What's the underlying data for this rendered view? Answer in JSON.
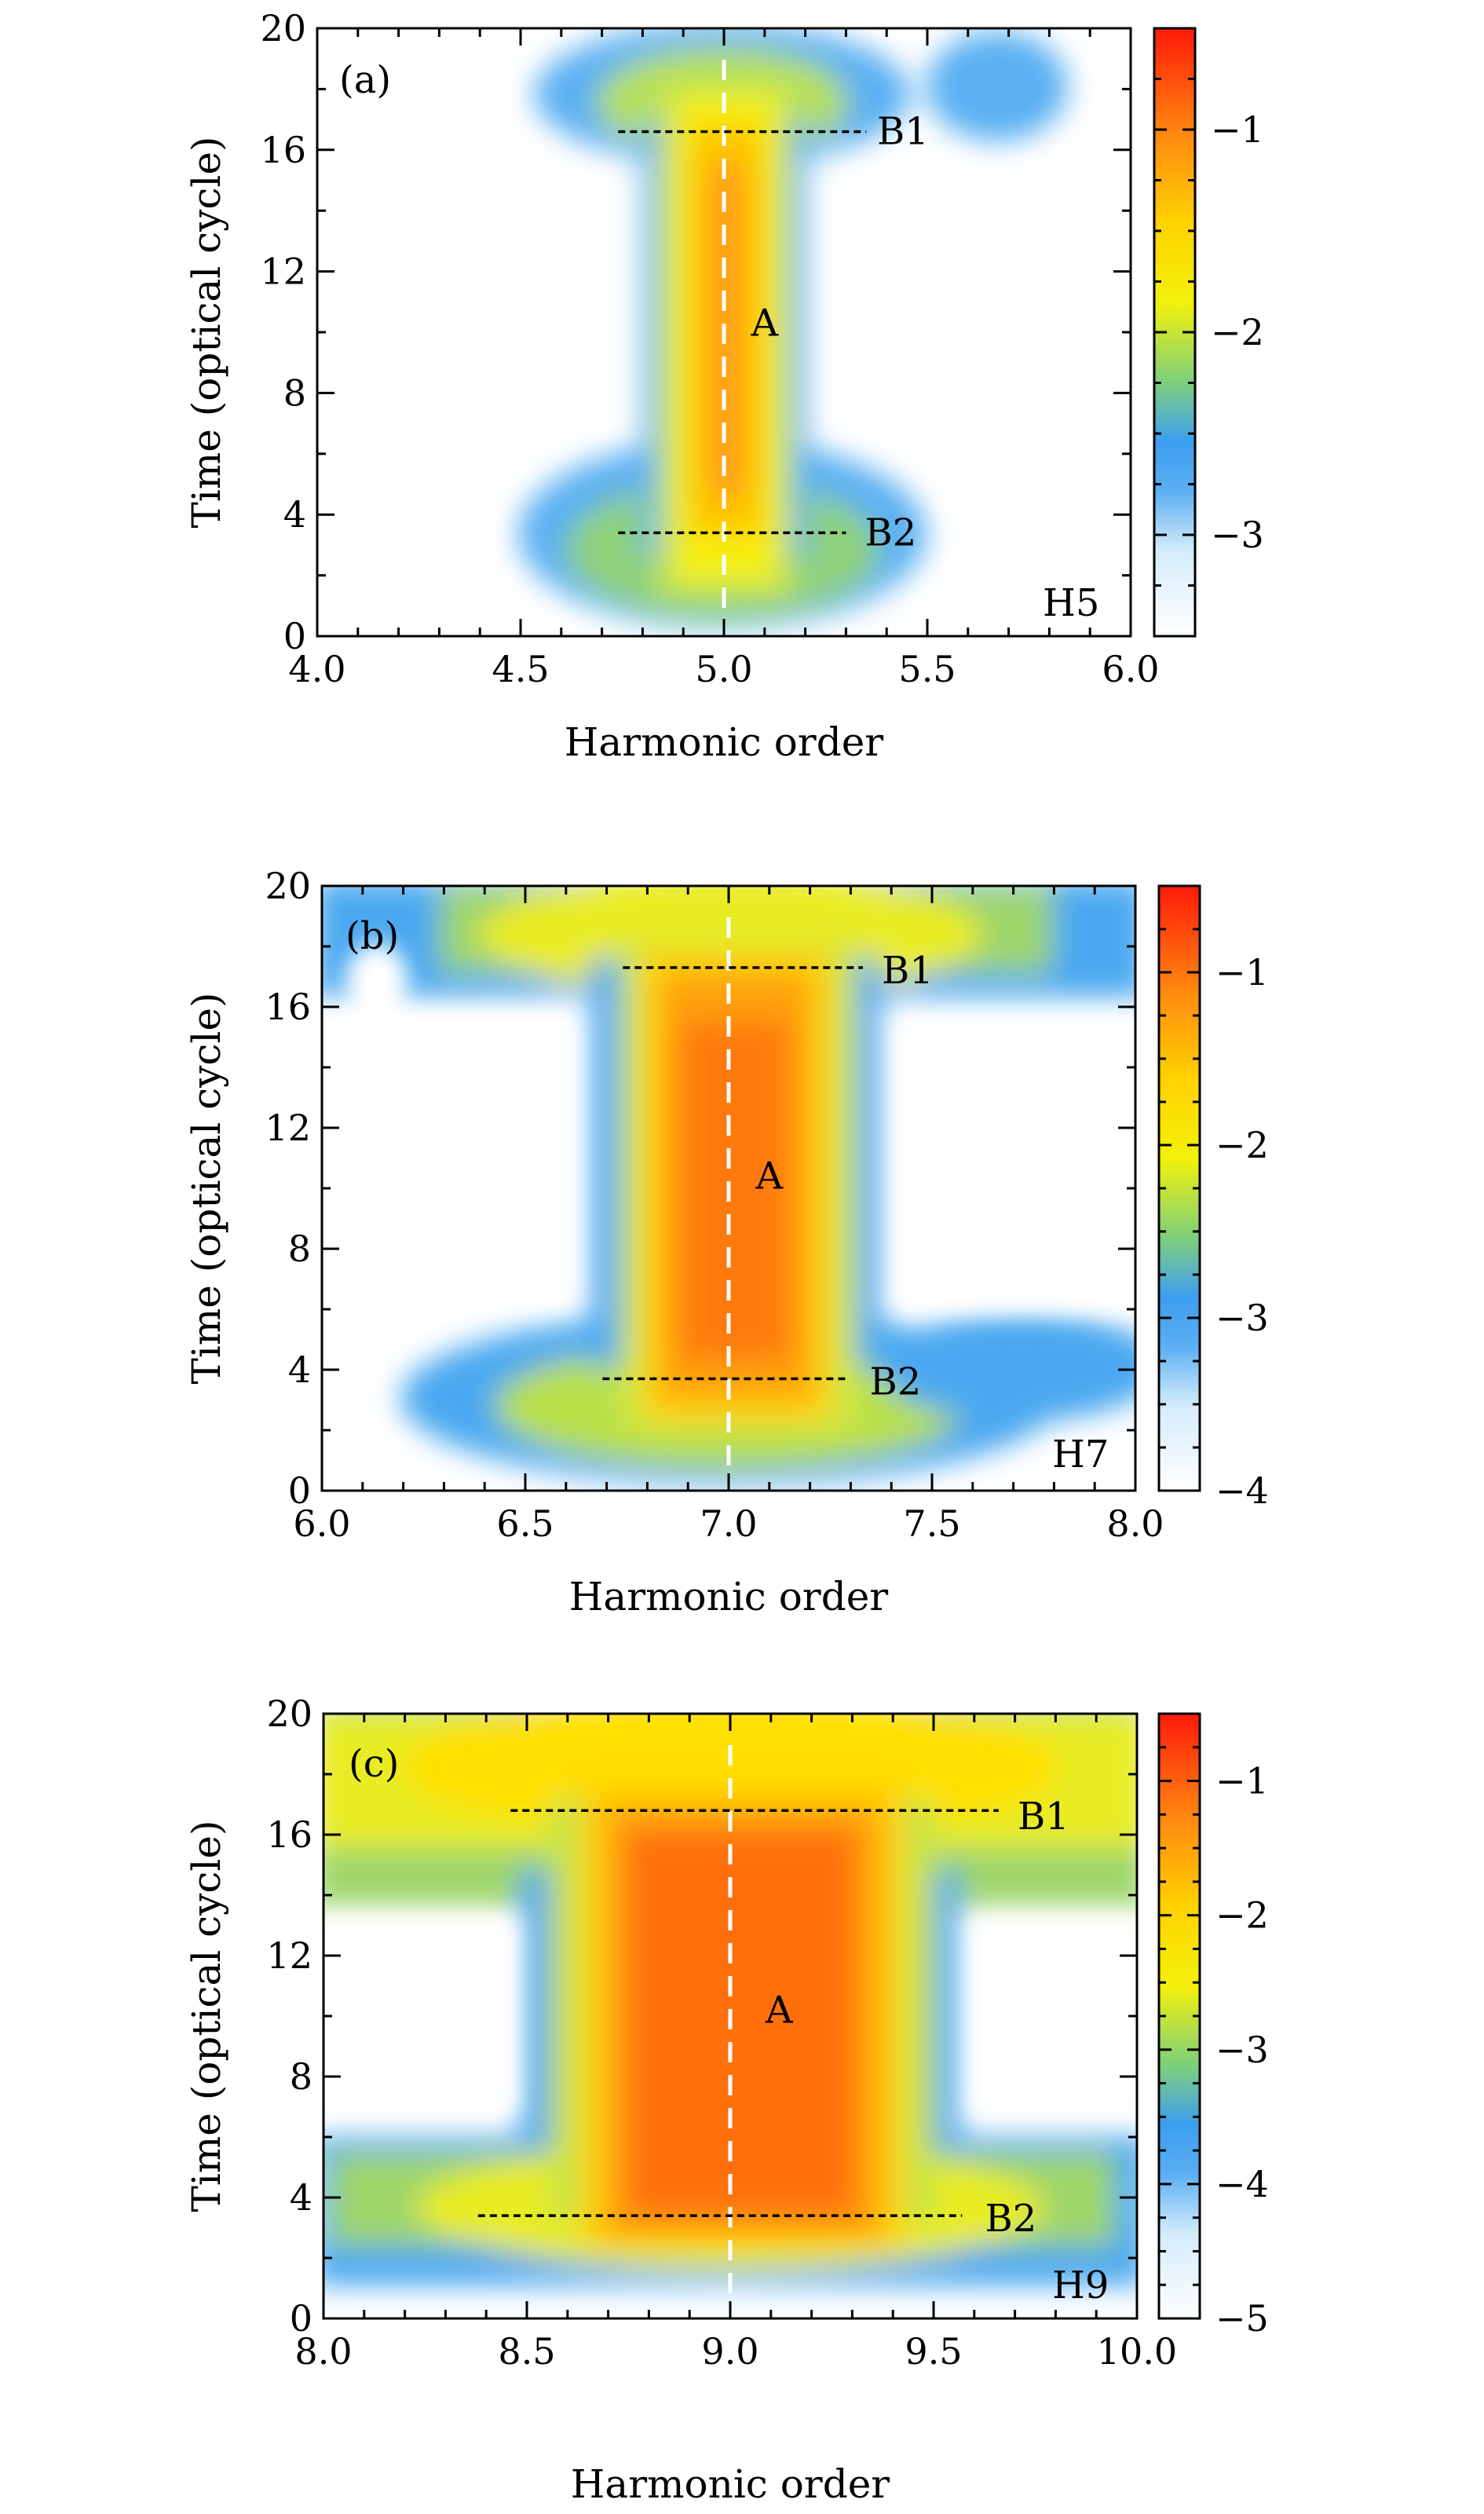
{
  "chart_data": [
    {
      "type": "heatmap",
      "panel_label": "(a)",
      "harmonic_label": "H5",
      "xlabel": "Harmonic order",
      "ylabel": "Time (optical cycle)",
      "xlim": [
        4.0,
        6.0
      ],
      "ylim": [
        0,
        20
      ],
      "xticks": [
        "4.0",
        "4.5",
        "5.0",
        "5.5",
        "6.0"
      ],
      "yticks": [
        "0",
        "4",
        "8",
        "12",
        "16",
        "20"
      ],
      "colorbar": {
        "range": [
          -3.5,
          -0.5
        ],
        "ticks": [
          {
            "v": -1,
            "t": "−1"
          },
          {
            "v": -2,
            "t": "−2"
          },
          {
            "v": -3,
            "t": "−3"
          }
        ]
      },
      "center_order": 5.0,
      "labels": [
        {
          "text": "A",
          "x": 5.1,
          "y": 10.3
        },
        {
          "text": "B1",
          "x": 5.44,
          "y": 16.6
        },
        {
          "text": "B2",
          "x": 5.41,
          "y": 3.4
        }
      ],
      "lines": [
        {
          "name": "B1",
          "x1": 4.74,
          "x2": 5.35,
          "y": 16.6
        },
        {
          "name": "B2",
          "x1": 4.74,
          "x2": 5.3,
          "y": 3.4
        }
      ]
    },
    {
      "type": "heatmap",
      "panel_label": "(b)",
      "harmonic_label": "H7",
      "xlabel": "Harmonic order",
      "ylabel": "Time (optical cycle)",
      "xlim": [
        6.0,
        8.0
      ],
      "ylim": [
        0,
        20
      ],
      "xticks": [
        "6.0",
        "6.5",
        "7.0",
        "7.5",
        "8.0"
      ],
      "yticks": [
        "0",
        "4",
        "8",
        "12",
        "16",
        "20"
      ],
      "colorbar": {
        "range": [
          -4,
          -0.5
        ],
        "ticks": [
          {
            "v": -1,
            "t": "−1"
          },
          {
            "v": -2,
            "t": "−2"
          },
          {
            "v": -3,
            "t": "−3"
          },
          {
            "v": -4,
            "t": "−4"
          }
        ]
      },
      "center_order": 7.0,
      "labels": [
        {
          "text": "A",
          "x": 7.1,
          "y": 10.4
        },
        {
          "text": "B1",
          "x": 7.44,
          "y": 17.2
        },
        {
          "text": "B2",
          "x": 7.41,
          "y": 3.6
        }
      ],
      "lines": [
        {
          "name": "B1",
          "x1": 6.74,
          "x2": 7.33,
          "y": 17.3
        },
        {
          "name": "B2",
          "x1": 6.69,
          "x2": 7.29,
          "y": 3.7
        }
      ]
    },
    {
      "type": "heatmap",
      "panel_label": "(c)",
      "harmonic_label": "H9",
      "xlabel": "Harmonic order",
      "ylabel": "Time (optical cycle)",
      "xlim": [
        8.0,
        10.0
      ],
      "ylim": [
        0,
        20
      ],
      "xticks": [
        "8.0",
        "8.5",
        "9.0",
        "9.5",
        "10.0"
      ],
      "yticks": [
        "0",
        "4",
        "8",
        "12",
        "16",
        "20"
      ],
      "colorbar": {
        "range": [
          -5,
          -0.5
        ],
        "ticks": [
          {
            "v": -1,
            "t": "−1"
          },
          {
            "v": -2,
            "t": "−2"
          },
          {
            "v": -3,
            "t": "−3"
          },
          {
            "v": -4,
            "t": "−4"
          },
          {
            "v": -5,
            "t": "−5"
          }
        ]
      },
      "center_order": 9.0,
      "labels": [
        {
          "text": "A",
          "x": 9.12,
          "y": 10.2
        },
        {
          "text": "B1",
          "x": 9.77,
          "y": 16.6
        },
        {
          "text": "B2",
          "x": 9.69,
          "y": 3.3
        }
      ],
      "lines": [
        {
          "name": "B1",
          "x1": 8.46,
          "x2": 9.66,
          "y": 16.8
        },
        {
          "name": "B2",
          "x1": 8.38,
          "x2": 9.57,
          "y": 3.4
        }
      ]
    }
  ]
}
